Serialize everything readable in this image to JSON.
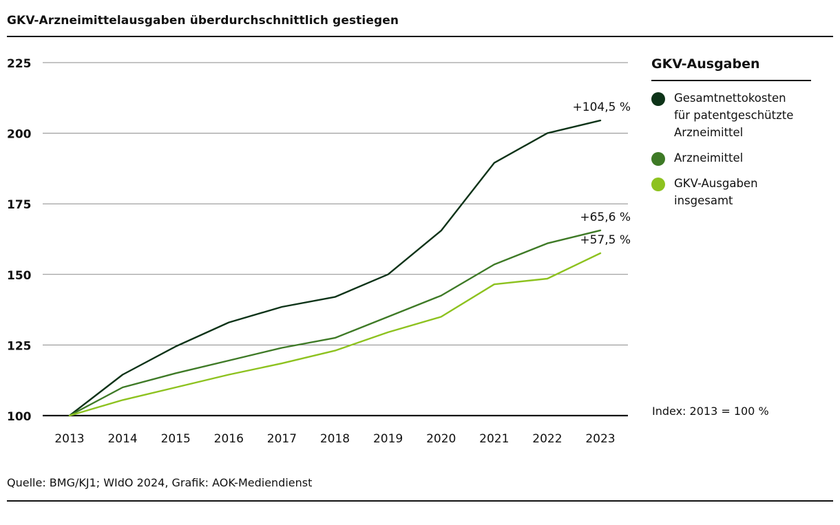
{
  "title": "GKV-Arzneimittelausgaben überdurchschnittlich gestiegen",
  "source": "Quelle: BMG/KJ1; WIdO 2024, Grafik: AOK-Mediendienst",
  "legend": {
    "title": "GKV-Ausgaben",
    "items": [
      {
        "label": "Gesamtnettokosten\nfür patentgeschützte\nArzneimittel",
        "color": "#0d3318"
      },
      {
        "label": "Arzneimittel",
        "color": "#3e7a26"
      },
      {
        "label": "GKV-Ausgaben\ninsgesamt",
        "color": "#8dc21f"
      }
    ]
  },
  "index_note": "Index: 2013 = 100 %",
  "chart_data": {
    "type": "line",
    "x": [
      "2013",
      "2014",
      "2015",
      "2016",
      "2017",
      "2018",
      "2019",
      "2020",
      "2021",
      "2022",
      "2023"
    ],
    "ylim": [
      100,
      225
    ],
    "yticks": [
      "100",
      "125",
      "150",
      "175",
      "200",
      "225"
    ],
    "series": [
      {
        "name": "Gesamtnettokosten für patentgeschützte Arzneimittel",
        "color": "#0d3318",
        "values": [
          100,
          114.5,
          124.5,
          133,
          138.5,
          142,
          150,
          165.5,
          189.5,
          200,
          204.5
        ],
        "end_label": "+104,5 %"
      },
      {
        "name": "Arzneimittel",
        "color": "#3e7a26",
        "values": [
          100,
          110,
          115,
          119.5,
          124,
          127.5,
          135,
          142.5,
          153.5,
          161,
          165.6
        ],
        "end_label": "+65,6 %"
      },
      {
        "name": "GKV-Ausgaben insgesamt",
        "color": "#8dc21f",
        "values": [
          100,
          105.5,
          110,
          114.5,
          118.5,
          123,
          129.5,
          135,
          146.5,
          148.5,
          157.5
        ],
        "end_label": "+57,5 %"
      }
    ]
  }
}
